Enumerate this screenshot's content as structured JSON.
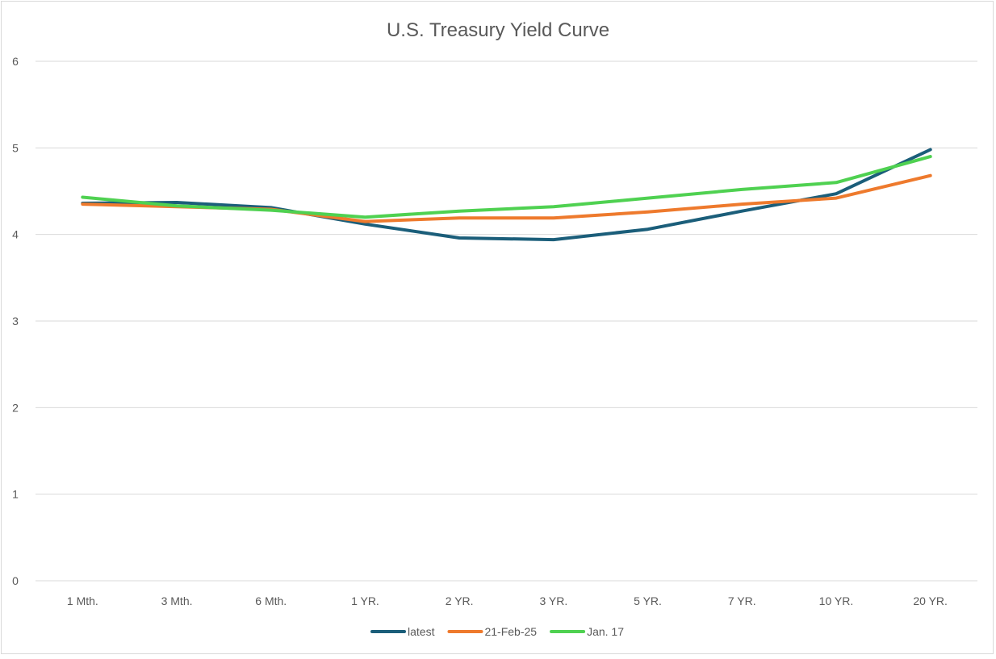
{
  "chart_data": {
    "type": "line",
    "title": "U.S. Treasury Yield Curve",
    "xlabel": "",
    "ylabel": "",
    "ylim": [
      0,
      6
    ],
    "yticks": [
      "0",
      "1",
      "2",
      "3",
      "4",
      "5",
      "6"
    ],
    "grid": true,
    "legend_position": "bottom",
    "categories": [
      "1 Mth.",
      "3 Mth.",
      "6 Mth.",
      "1 YR.",
      "2 YR.",
      "3 YR.",
      "5 YR.",
      "7 YR.",
      "10 YR.",
      "20 YR."
    ],
    "series": [
      {
        "name": "latest",
        "color": "#1b5e7a",
        "values": [
          4.36,
          4.37,
          4.31,
          4.12,
          3.96,
          3.94,
          4.06,
          4.27,
          4.47,
          4.98
        ]
      },
      {
        "name": "21-Feb-25",
        "color": "#ee7a2d",
        "values": [
          4.35,
          4.32,
          4.29,
          4.15,
          4.19,
          4.19,
          4.26,
          4.35,
          4.42,
          4.68
        ]
      },
      {
        "name": "Jan. 17",
        "color": "#4fd151",
        "values": [
          4.43,
          4.33,
          4.28,
          4.2,
          4.27,
          4.32,
          4.42,
          4.52,
          4.6,
          4.9
        ]
      }
    ]
  }
}
